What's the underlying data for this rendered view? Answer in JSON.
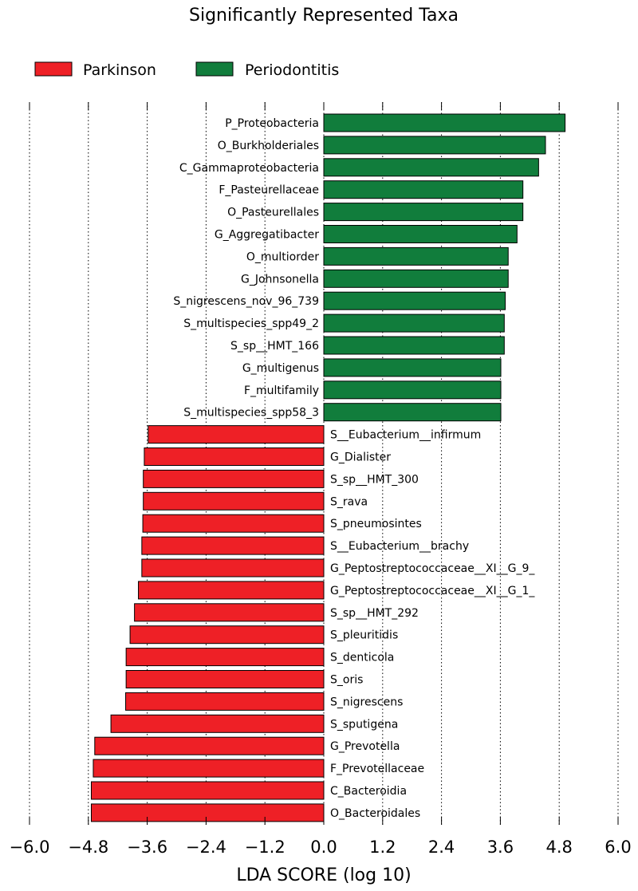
{
  "chart_data": {
    "type": "bar",
    "orientation": "horizontal",
    "title": "Significantly Represented Taxa",
    "xlabel": "LDA SCORE (log 10)",
    "ylabel": "",
    "xlim": [
      -6.0,
      6.0
    ],
    "xticks": [
      -6.0,
      -4.8,
      -3.6,
      -2.4,
      -1.2,
      0.0,
      1.2,
      2.4,
      3.6,
      4.8,
      6.0
    ],
    "xtick_labels": [
      "−6.0",
      "−4.8",
      "−3.6",
      "−2.4",
      "−1.2",
      "0.0",
      "1.2",
      "2.4",
      "3.6",
      "4.8",
      "6.0"
    ],
    "grid": "vertical dotted at ticks",
    "legend": [
      {
        "name": "Parkinson",
        "color": "#ee2026"
      },
      {
        "name": "Periodontitis",
        "color": "#117d3c"
      }
    ],
    "bars": [
      {
        "label": "P_Proteobacteria",
        "value": 4.92,
        "group": "Periodontitis"
      },
      {
        "label": "O_Burkholderiales",
        "value": 4.52,
        "group": "Periodontitis"
      },
      {
        "label": "C_Gammaproteobacteria",
        "value": 4.38,
        "group": "Periodontitis"
      },
      {
        "label": "F_Pasteurellaceae",
        "value": 4.06,
        "group": "Periodontitis"
      },
      {
        "label": "O_Pasteurellales",
        "value": 4.06,
        "group": "Periodontitis"
      },
      {
        "label": "G_Aggregatibacter",
        "value": 3.94,
        "group": "Periodontitis"
      },
      {
        "label": "O_multiorder",
        "value": 3.76,
        "group": "Periodontitis"
      },
      {
        "label": "G_Johnsonella",
        "value": 3.76,
        "group": "Periodontitis"
      },
      {
        "label": "S_nigrescens_nov_96_739",
        "value": 3.7,
        "group": "Periodontitis"
      },
      {
        "label": "S_multispecies_spp49_2",
        "value": 3.68,
        "group": "Periodontitis"
      },
      {
        "label": "S_sp__HMT_166",
        "value": 3.68,
        "group": "Periodontitis"
      },
      {
        "label": "G_multigenus",
        "value": 3.61,
        "group": "Periodontitis"
      },
      {
        "label": "F_multifamily",
        "value": 3.61,
        "group": "Periodontitis"
      },
      {
        "label": "S_multispecies_spp58_3",
        "value": 3.61,
        "group": "Periodontitis"
      },
      {
        "label": "S__Eubacterium__infirmum",
        "value": -3.58,
        "group": "Parkinson"
      },
      {
        "label": "G_Dialister",
        "value": -3.66,
        "group": "Parkinson"
      },
      {
        "label": "S_sp__HMT_300",
        "value": -3.68,
        "group": "Parkinson"
      },
      {
        "label": "S_rava",
        "value": -3.68,
        "group": "Parkinson"
      },
      {
        "label": "S_pneumosintes",
        "value": -3.69,
        "group": "Parkinson"
      },
      {
        "label": "S__Eubacterium__brachy",
        "value": -3.71,
        "group": "Parkinson"
      },
      {
        "label": "G_Peptostreptococcaceae__XI__G_9_",
        "value": -3.71,
        "group": "Parkinson"
      },
      {
        "label": "G_Peptostreptococcaceae__XI__G_1_",
        "value": -3.78,
        "group": "Parkinson"
      },
      {
        "label": "S_sp__HMT_292",
        "value": -3.86,
        "group": "Parkinson"
      },
      {
        "label": "S_pleuritidis",
        "value": -3.95,
        "group": "Parkinson"
      },
      {
        "label": "S_denticola",
        "value": -4.03,
        "group": "Parkinson"
      },
      {
        "label": "S_oris",
        "value": -4.03,
        "group": "Parkinson"
      },
      {
        "label": "S_nigrescens",
        "value": -4.04,
        "group": "Parkinson"
      },
      {
        "label": "S_sputigena",
        "value": -4.34,
        "group": "Parkinson"
      },
      {
        "label": "G_Prevotella",
        "value": -4.67,
        "group": "Parkinson"
      },
      {
        "label": "F_Prevotellaceae",
        "value": -4.7,
        "group": "Parkinson"
      },
      {
        "label": "C_Bacteroidia",
        "value": -4.74,
        "group": "Parkinson"
      },
      {
        "label": "O_Bacteroidales",
        "value": -4.74,
        "group": "Parkinson"
      }
    ]
  }
}
